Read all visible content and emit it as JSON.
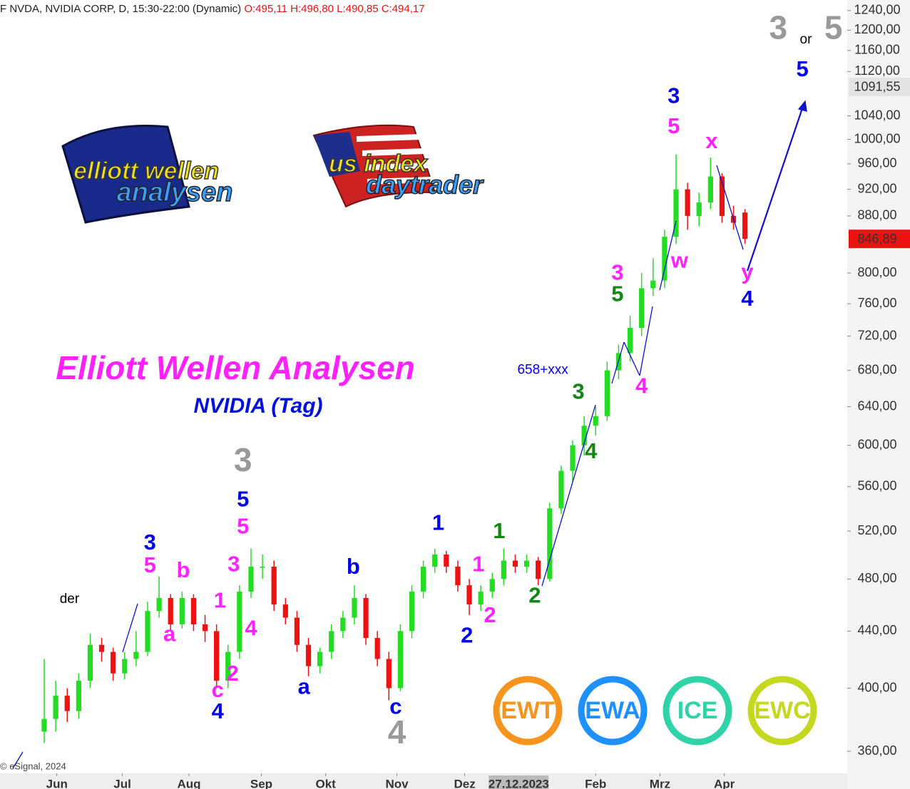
{
  "chart_data": {
    "type": "candlestick",
    "header": "F NVDA, NVIDIA CORP, D, 15:30-22:00 (Dynamic)",
    "ohlc_text": "O:495,11 H:496,80 L:490,85 C:494,17",
    "title": "Elliott Wellen Analysen",
    "subtitle": "NVIDIA (Tag)",
    "copyright": "© eSignal, 2024",
    "log_scale": true,
    "up_color": "#22dd22",
    "down_color": "#ee1111",
    "xlim": [
      -3.85,
      69.9
    ],
    "ylim": [
      347,
      1262
    ],
    "yticks": [
      {
        "value": 360,
        "label": "360,00"
      },
      {
        "value": 400,
        "label": "400,00"
      },
      {
        "value": 440,
        "label": "440,00"
      },
      {
        "value": 480,
        "label": "480,00"
      },
      {
        "value": 520,
        "label": "520,00"
      },
      {
        "value": 560,
        "label": "560,00"
      },
      {
        "value": 600,
        "label": "600,00"
      },
      {
        "value": 640,
        "label": "640,00"
      },
      {
        "value": 680,
        "label": "680,00"
      },
      {
        "value": 720,
        "label": "720,00"
      },
      {
        "value": 760,
        "label": "760,00"
      },
      {
        "value": 800,
        "label": "800,00"
      },
      {
        "value": 880,
        "label": "880,00"
      },
      {
        "value": 920,
        "label": "920,00"
      },
      {
        "value": 960,
        "label": "960,00"
      },
      {
        "value": 1000,
        "label": "1000,00"
      },
      {
        "value": 1040,
        "label": "1040,00"
      },
      {
        "value": 1120,
        "label": "1120,00"
      },
      {
        "value": 1160,
        "label": "1160,00"
      },
      {
        "value": 1200,
        "label": "1200,00"
      },
      {
        "value": 1240,
        "label": "1240,00"
      }
    ],
    "xticks": [
      {
        "value": 1.1,
        "label": "Jun"
      },
      {
        "value": 6.8,
        "label": "Jul"
      },
      {
        "value": 12.6,
        "label": "Aug"
      },
      {
        "value": 18.9,
        "label": "Sep"
      },
      {
        "value": 24.5,
        "label": "Okt"
      },
      {
        "value": 30.7,
        "label": "Nov"
      },
      {
        "value": 36.6,
        "label": "Dez"
      },
      {
        "value": 48,
        "label": "Feb"
      },
      {
        "value": 53.6,
        "label": "Mrz"
      },
      {
        "value": 59.2,
        "label": "Apr"
      }
    ],
    "cursor_label": {
      "value": 41.3,
      "label": "27.12.2023"
    },
    "price_markers": [
      {
        "value": 1091.55,
        "label": "1091,55",
        "color": "#e4e4e4",
        "text_color": "#000000"
      },
      {
        "value": 846.89,
        "label": "846,89",
        "color": "#ee1111",
        "text_color": "#ffffff"
      }
    ],
    "candles": [
      [
        372,
        420,
        365,
        380
      ],
      [
        380,
        405,
        372,
        395
      ],
      [
        395,
        400,
        378,
        385
      ],
      [
        385,
        410,
        380,
        405
      ],
      [
        405,
        438,
        400,
        430
      ],
      [
        430,
        435,
        418,
        425
      ],
      [
        425,
        428,
        405,
        410
      ],
      [
        410,
        425,
        406,
        420
      ],
      [
        420,
        440,
        415,
        425
      ],
      [
        425,
        462,
        422,
        455
      ],
      [
        455,
        482,
        450,
        465
      ],
      [
        465,
        468,
        440,
        445
      ],
      [
        445,
        470,
        442,
        465
      ],
      [
        465,
        468,
        440,
        445
      ],
      [
        445,
        452,
        432,
        440
      ],
      [
        440,
        445,
        400,
        405
      ],
      [
        405,
        430,
        400,
        425
      ],
      [
        425,
        475,
        420,
        470
      ],
      [
        470,
        505,
        465,
        490
      ],
      [
        490,
        500,
        480,
        490
      ],
      [
        490,
        495,
        455,
        460
      ],
      [
        460,
        465,
        445,
        450
      ],
      [
        450,
        455,
        425,
        430
      ],
      [
        430,
        435,
        408,
        415
      ],
      [
        415,
        428,
        410,
        425
      ],
      [
        425,
        445,
        420,
        440
      ],
      [
        440,
        455,
        435,
        450
      ],
      [
        450,
        475,
        445,
        465
      ],
      [
        465,
        468,
        430,
        435
      ],
      [
        435,
        440,
        415,
        420
      ],
      [
        420,
        425,
        392,
        400
      ],
      [
        400,
        445,
        398,
        440
      ],
      [
        440,
        475,
        435,
        470
      ],
      [
        470,
        495,
        465,
        490
      ],
      [
        490,
        505,
        485,
        500
      ],
      [
        500,
        503,
        485,
        490
      ],
      [
        490,
        495,
        470,
        475
      ],
      [
        475,
        480,
        452,
        460
      ],
      [
        460,
        475,
        455,
        470
      ],
      [
        470,
        485,
        465,
        480
      ],
      [
        480,
        505,
        475,
        495
      ],
      [
        495,
        500,
        485,
        490
      ],
      [
        490,
        500,
        485,
        495
      ],
      [
        495,
        498,
        475,
        480
      ],
      [
        480,
        545,
        478,
        540
      ],
      [
        540,
        580,
        535,
        575
      ],
      [
        575,
        605,
        565,
        600
      ],
      [
        600,
        630,
        590,
        620
      ],
      [
        620,
        640,
        610,
        630
      ],
      [
        630,
        690,
        625,
        680
      ],
      [
        680,
        710,
        670,
        700
      ],
      [
        700,
        745,
        690,
        730
      ],
      [
        730,
        800,
        720,
        780
      ],
      [
        780,
        820,
        770,
        790
      ],
      [
        790,
        860,
        780,
        850
      ],
      [
        850,
        975,
        840,
        920
      ],
      [
        920,
        930,
        860,
        880
      ],
      [
        880,
        915,
        865,
        900
      ],
      [
        900,
        970,
        890,
        940
      ],
      [
        940,
        945,
        870,
        880
      ],
      [
        880,
        895,
        860,
        870
      ],
      [
        885,
        890,
        840,
        847
      ]
    ],
    "annotations": [
      {
        "text": "3",
        "color": "#999999",
        "x": 63.9,
        "y": 1200
      },
      {
        "text": "or",
        "color": "#000000",
        "x": 66.3,
        "y": 1181
      },
      {
        "text": "5",
        "color": "#999999",
        "x": 68.7,
        "y": 1200
      },
      {
        "text": "5",
        "color": "#0000ee",
        "x": 66.0,
        "y": 1122
      },
      {
        "text": "3",
        "color": "#0000ee",
        "x": 54.8,
        "y": 1073
      },
      {
        "text": "5",
        "color": "#ff22ff",
        "x": 54.8,
        "y": 1020
      },
      {
        "text": "x",
        "color": "#ff22ff",
        "x": 58.1,
        "y": 995
      },
      {
        "text": "w",
        "color": "#ff22ff",
        "x": 55.3,
        "y": 815
      },
      {
        "text": "3",
        "color": "#ff22ff",
        "x": 49.9,
        "y": 799
      },
      {
        "text": "5",
        "color": "#118811",
        "x": 49.9,
        "y": 771
      },
      {
        "text": "y",
        "color": "#ff22ff",
        "x": 61.2,
        "y": 800
      },
      {
        "text": "4",
        "color": "#0000ee",
        "x": 61.2,
        "y": 765
      },
      {
        "text": "658+xxx",
        "color": "#0000ee",
        "x": 43.4,
        "y": 680
      },
      {
        "text": "4",
        "color": "#ff22ff",
        "x": 52.0,
        "y": 661
      },
      {
        "text": "3",
        "color": "#118811",
        "x": 46.5,
        "y": 655
      },
      {
        "text": "4",
        "color": "#118811",
        "x": 47.6,
        "y": 593
      },
      {
        "text": "1",
        "color": "#0000ee",
        "x": 34.3,
        "y": 526
      },
      {
        "text": "1",
        "color": "#118811",
        "x": 39.6,
        "y": 519
      },
      {
        "text": "1",
        "color": "#ff22ff",
        "x": 37.8,
        "y": 491
      },
      {
        "text": "2",
        "color": "#118811",
        "x": 42.7,
        "y": 466
      },
      {
        "text": "2",
        "color": "#ff22ff",
        "x": 38.8,
        "y": 451
      },
      {
        "text": "2",
        "color": "#0000ee",
        "x": 36.8,
        "y": 436
      },
      {
        "text": "b",
        "color": "#0000ee",
        "x": 26.9,
        "y": 489
      },
      {
        "text": "a",
        "color": "#0000ee",
        "x": 22.6,
        "y": 400
      },
      {
        "text": "c",
        "color": "#0000ee",
        "x": 30.6,
        "y": 387
      },
      {
        "text": "4",
        "color": "#999999",
        "x": 30.7,
        "y": 370
      },
      {
        "text": "3",
        "color": "#999999",
        "x": 17.3,
        "y": 583
      },
      {
        "text": "5",
        "color": "#0000ee",
        "x": 17.3,
        "y": 547
      },
      {
        "text": "5",
        "color": "#ff22ff",
        "x": 17.3,
        "y": 523
      },
      {
        "text": "3",
        "color": "#ff22ff",
        "x": 16.5,
        "y": 491
      },
      {
        "text": "1",
        "color": "#ff22ff",
        "x": 15.3,
        "y": 462
      },
      {
        "text": "4",
        "color": "#ff22ff",
        "x": 18.0,
        "y": 441
      },
      {
        "text": "2",
        "color": "#ff22ff",
        "x": 16.4,
        "y": 409
      },
      {
        "text": "c",
        "color": "#ff22ff",
        "x": 15.1,
        "y": 398
      },
      {
        "text": "4",
        "color": "#0000ee",
        "x": 15.1,
        "y": 384
      },
      {
        "text": "3",
        "color": "#0000ee",
        "x": 9.2,
        "y": 509
      },
      {
        "text": "5",
        "color": "#ff22ff",
        "x": 9.2,
        "y": 490
      },
      {
        "text": "b",
        "color": "#ff22ff",
        "x": 12.1,
        "y": 486
      },
      {
        "text": "a",
        "color": "#ff22ff",
        "x": 10.9,
        "y": 437
      },
      {
        "text": "der",
        "color": "#000000",
        "x": 2.2,
        "y": 464
      }
    ],
    "logos": [
      {
        "line1": "elliott wellen",
        "line2": "analysen"
      },
      {
        "line1": "us index",
        "line2": "daytrader"
      }
    ],
    "badges": [
      {
        "label": "EWT",
        "color": "#f7941d"
      },
      {
        "label": "EWA",
        "color": "#1e90ff"
      },
      {
        "label": "ICE",
        "color": "#2ed3a8"
      },
      {
        "label": "EWC",
        "color": "#c4d820"
      }
    ]
  }
}
